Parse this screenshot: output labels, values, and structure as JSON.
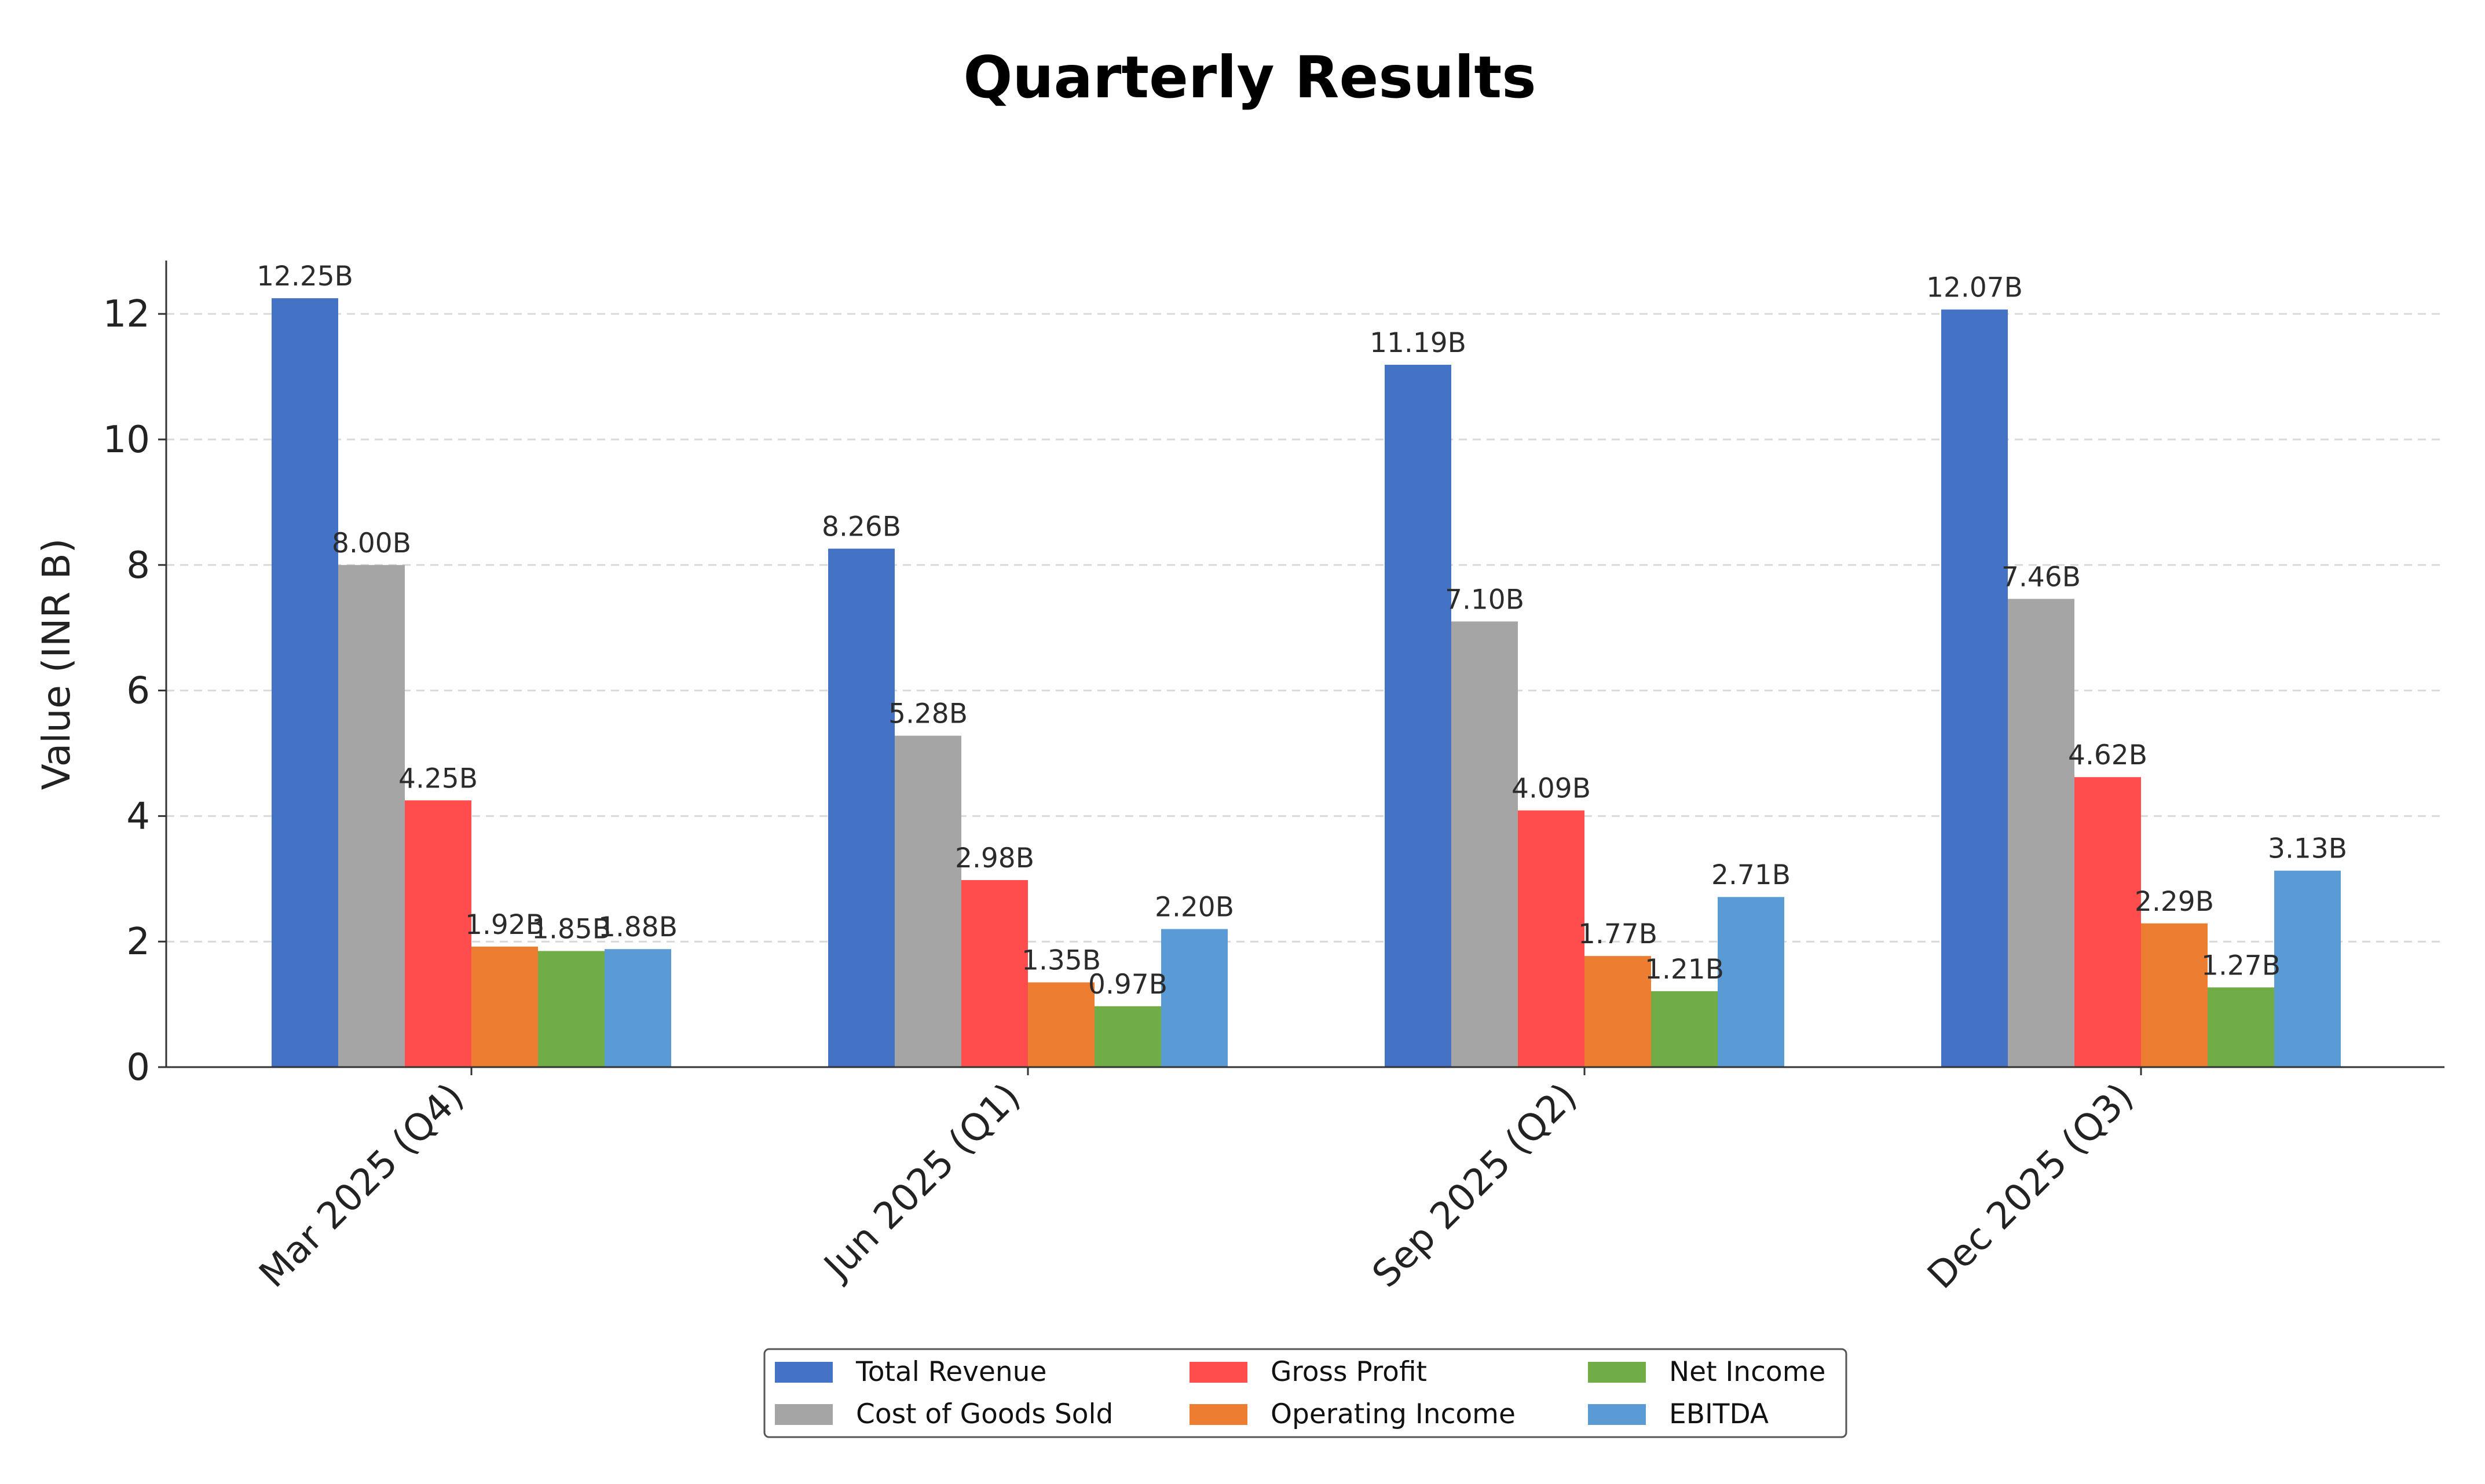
{
  "chart_data": {
    "type": "bar",
    "title": "Quarterly Results",
    "xlabel": "",
    "ylabel": "Value (INR B)",
    "categories": [
      "Mar 2025 (Q4)",
      "Jun 2025 (Q1)",
      "Sep 2025 (Q2)",
      "Dec 2025 (Q3)"
    ],
    "series": [
      {
        "name": "Total Revenue",
        "color": "#4472C4",
        "values": [
          12.25,
          8.26,
          11.19,
          12.07
        ],
        "labels": [
          "12.25B",
          "8.26B",
          "11.19B",
          "12.07B"
        ]
      },
      {
        "name": "Cost of Goods Sold",
        "color": "#A5A5A5",
        "values": [
          8.0,
          5.28,
          7.1,
          7.46
        ],
        "labels": [
          "8.00B",
          "5.28B",
          "7.10B",
          "7.46B"
        ]
      },
      {
        "name": "Gross Profit",
        "color": "#FF4C4C",
        "values": [
          4.25,
          2.98,
          4.09,
          4.62
        ],
        "labels": [
          "4.25B",
          "2.98B",
          "4.09B",
          "4.62B"
        ]
      },
      {
        "name": "Operating Income",
        "color": "#ED7D31",
        "values": [
          1.92,
          1.35,
          1.77,
          2.29
        ],
        "labels": [
          "1.92B",
          "1.35B",
          "1.77B",
          "2.29B"
        ]
      },
      {
        "name": "Net Income",
        "color": "#70AD47",
        "values": [
          1.85,
          0.97,
          1.21,
          1.27
        ],
        "labels": [
          "1.85B",
          "0.97B",
          "1.21B",
          "1.27B"
        ]
      },
      {
        "name": "EBITDA",
        "color": "#5B9BD5",
        "values": [
          1.88,
          2.2,
          2.71,
          3.13
        ],
        "labels": [
          "1.88B",
          "2.20B",
          "2.71B",
          "3.13B"
        ]
      }
    ],
    "y_ticks": [
      "0",
      "2",
      "4",
      "6",
      "8",
      "10",
      "12"
    ],
    "ylim": [
      0,
      12.85
    ],
    "grid": "horizontal dashed",
    "legend": "bottom-center"
  }
}
